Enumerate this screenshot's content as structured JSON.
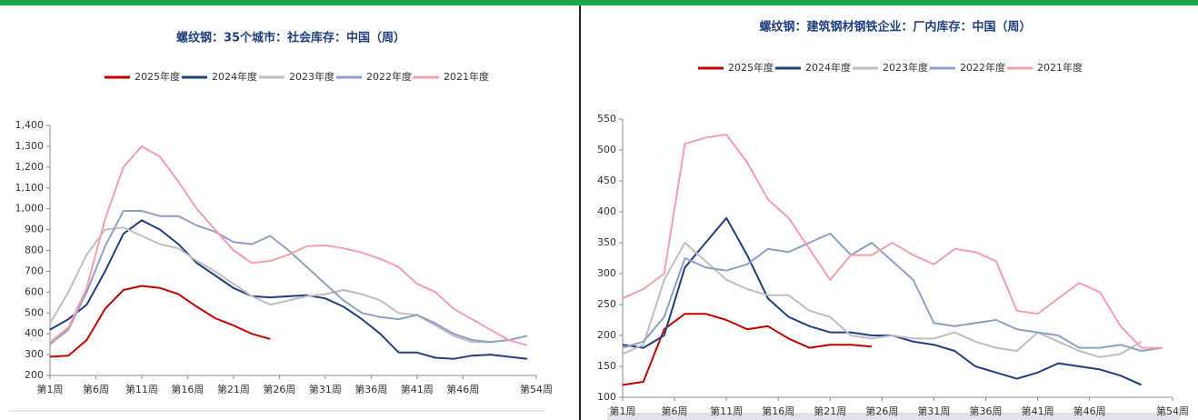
{
  "chart_data": [
    {
      "type": "line",
      "title": "螺纹钢：35个城市：社会库存：中国（周）",
      "x": [
        1,
        3,
        5,
        7,
        9,
        11,
        13,
        15,
        17,
        19,
        21,
        23,
        25,
        27,
        29,
        31,
        33,
        35,
        37,
        39,
        41,
        43,
        45,
        47,
        49,
        51,
        53
      ],
      "xlim": [
        1,
        54
      ],
      "xticks": [
        {
          "value": 1,
          "label": "第1周"
        },
        {
          "value": 6,
          "label": "第6周"
        },
        {
          "value": 11,
          "label": "第11周"
        },
        {
          "value": 16,
          "label": "第16周"
        },
        {
          "value": 21,
          "label": "第21周"
        },
        {
          "value": 26,
          "label": "第26周"
        },
        {
          "value": 31,
          "label": "第31周"
        },
        {
          "value": 36,
          "label": "第36周"
        },
        {
          "value": 41,
          "label": "第41周"
        },
        {
          "value": 46,
          "label": "第46周"
        },
        {
          "value": 54,
          "label": "第54周"
        }
      ],
      "ylim": [
        200,
        1400
      ],
      "yticks": [
        200,
        300,
        400,
        500,
        600,
        700,
        800,
        900,
        {
          "value": 1000,
          "label": "1,000"
        },
        {
          "value": 1100,
          "label": "1,100"
        },
        {
          "value": 1200,
          "label": "1,200"
        },
        {
          "value": 1300,
          "label": "1,300"
        },
        {
          "value": 1400,
          "label": "1,400"
        }
      ],
      "series": [
        {
          "name": "2025年度",
          "color": "#c00000",
          "values": [
            290,
            295,
            370,
            520,
            610,
            630,
            620,
            590,
            530,
            475,
            440,
            400,
            375,
            null,
            null,
            null,
            null,
            null,
            null,
            null,
            null,
            null,
            null,
            null,
            null,
            null,
            null
          ]
        },
        {
          "name": "2024年度",
          "color": "#1f3f7f",
          "values": [
            420,
            470,
            540,
            700,
            880,
            945,
            900,
            830,
            740,
            680,
            620,
            580,
            575,
            580,
            585,
            570,
            530,
            470,
            400,
            310,
            310,
            285,
            280,
            295,
            300,
            290,
            280
          ]
        },
        {
          "name": "2023年度",
          "color": "#bfbfbf",
          "values": [
            450,
            600,
            780,
            900,
            910,
            870,
            830,
            810,
            750,
            700,
            640,
            580,
            540,
            560,
            580,
            590,
            610,
            590,
            560,
            500,
            490,
            440,
            390,
            360,
            360,
            370,
            null
          ]
        },
        {
          "name": "2022年度",
          "color": "#8ea0c4",
          "values": [
            350,
            420,
            600,
            820,
            990,
            990,
            965,
            965,
            920,
            890,
            840,
            830,
            870,
            800,
            720,
            640,
            560,
            500,
            480,
            470,
            490,
            450,
            400,
            370,
            360,
            370,
            390
          ]
        },
        {
          "name": "2021年度",
          "color": "#f4a0ab",
          "values": [
            360,
            430,
            620,
            950,
            1200,
            1300,
            1250,
            1130,
            1000,
            900,
            800,
            740,
            750,
            780,
            820,
            825,
            810,
            790,
            760,
            720,
            640,
            600,
            520,
            470,
            420,
            370,
            345
          ]
        }
      ]
    },
    {
      "type": "line",
      "title": "螺纹钢：建筑钢材钢铁企业：厂内库存：中国（周）",
      "x": [
        1,
        3,
        5,
        7,
        9,
        11,
        13,
        15,
        17,
        19,
        21,
        23,
        25,
        27,
        29,
        31,
        33,
        35,
        37,
        39,
        41,
        43,
        45,
        47,
        49,
        51,
        53
      ],
      "xlim": [
        1,
        54
      ],
      "xticks": [
        {
          "value": 1,
          "label": "第1周"
        },
        {
          "value": 6,
          "label": "第6周"
        },
        {
          "value": 11,
          "label": "第11周"
        },
        {
          "value": 16,
          "label": "第16周"
        },
        {
          "value": 21,
          "label": "第21周"
        },
        {
          "value": 26,
          "label": "第26周"
        },
        {
          "value": 31,
          "label": "第31周"
        },
        {
          "value": 36,
          "label": "第36周"
        },
        {
          "value": 41,
          "label": "第41周"
        },
        {
          "value": 46,
          "label": "第46周"
        },
        {
          "value": 54,
          "label": "第54周"
        }
      ],
      "ylim": [
        100,
        550
      ],
      "yticks": [
        100,
        150,
        200,
        250,
        300,
        350,
        400,
        450,
        500,
        550
      ],
      "series": [
        {
          "name": "2025年度",
          "color": "#c00000",
          "values": [
            120,
            125,
            210,
            235,
            235,
            225,
            210,
            215,
            195,
            180,
            185,
            185,
            182,
            null,
            null,
            null,
            null,
            null,
            null,
            null,
            null,
            null,
            null,
            null,
            null,
            null,
            null
          ]
        },
        {
          "name": "2024年度",
          "color": "#1f3f7f",
          "values": [
            185,
            180,
            200,
            310,
            350,
            390,
            330,
            260,
            230,
            215,
            205,
            205,
            200,
            200,
            190,
            185,
            175,
            150,
            140,
            130,
            140,
            155,
            150,
            145,
            135,
            120,
            null
          ]
        },
        {
          "name": "2023年度",
          "color": "#bfbfbf",
          "values": [
            170,
            185,
            290,
            350,
            320,
            290,
            275,
            265,
            265,
            240,
            230,
            200,
            195,
            200,
            195,
            195,
            205,
            190,
            180,
            175,
            205,
            190,
            175,
            165,
            170,
            190,
            null
          ]
        },
        {
          "name": "2022年度",
          "color": "#8ea0c4",
          "values": [
            180,
            190,
            230,
            325,
            310,
            305,
            315,
            340,
            335,
            350,
            365,
            330,
            350,
            320,
            290,
            220,
            215,
            220,
            225,
            210,
            205,
            200,
            180,
            180,
            185,
            175,
            180
          ]
        },
        {
          "name": "2021年度",
          "color": "#f4a0ab",
          "values": [
            260,
            275,
            300,
            510,
            520,
            525,
            480,
            420,
            390,
            340,
            290,
            330,
            330,
            350,
            330,
            315,
            340,
            335,
            320,
            240,
            235,
            260,
            285,
            270,
            215,
            180,
            180
          ]
        }
      ]
    }
  ]
}
